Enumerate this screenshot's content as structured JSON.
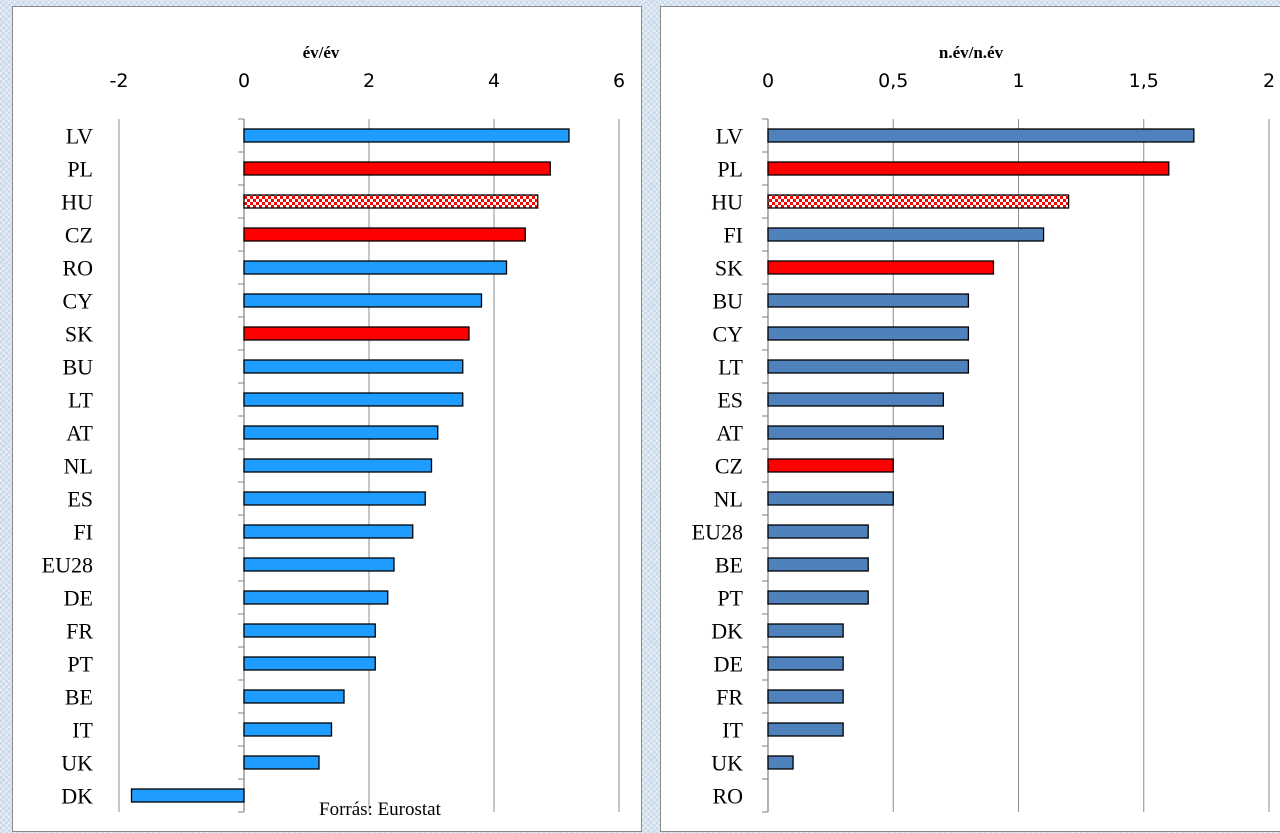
{
  "chart_data": [
    {
      "type": "bar",
      "orientation": "horizontal",
      "title": "év/év",
      "source_note": "Forrás: Eurostat",
      "xlim": [
        -2,
        6
      ],
      "xticks": [
        "-2",
        "0",
        "2",
        "4",
        "6"
      ],
      "grid": true,
      "categories": [
        "LV",
        "PL",
        "HU",
        "CZ",
        "RO",
        "CY",
        "SK",
        "BU",
        "LT",
        "AT",
        "NL",
        "ES",
        "FI",
        "EU28",
        "DE",
        "FR",
        "PT",
        "BE",
        "IT",
        "UK",
        "DK"
      ],
      "values": [
        5.2,
        4.9,
        4.7,
        4.5,
        4.2,
        3.8,
        3.6,
        3.5,
        3.5,
        3.1,
        3.0,
        2.9,
        2.7,
        2.4,
        2.3,
        2.1,
        2.1,
        1.6,
        1.4,
        1.2,
        -1.8
      ],
      "bar_styles": [
        "blue",
        "red",
        "checker",
        "red",
        "blue",
        "blue",
        "red",
        "blue",
        "blue",
        "blue",
        "blue",
        "blue",
        "blue",
        "blue",
        "blue",
        "blue",
        "blue",
        "blue",
        "blue",
        "blue",
        "blue"
      ]
    },
    {
      "type": "bar",
      "orientation": "horizontal",
      "title": "n.év/n.év",
      "xlim": [
        0,
        2
      ],
      "xticks": [
        "0",
        "0,5",
        "1",
        "1,5",
        "2"
      ],
      "grid": true,
      "categories": [
        "LV",
        "PL",
        "HU",
        "FI",
        "SK",
        "BU",
        "CY",
        "LT",
        "ES",
        "AT",
        "CZ",
        "NL",
        "EU28",
        "BE",
        "PT",
        "DK",
        "DE",
        "FR",
        "IT",
        "UK",
        "RO"
      ],
      "values": [
        1.7,
        1.6,
        1.2,
        1.1,
        0.9,
        0.8,
        0.8,
        0.8,
        0.7,
        0.7,
        0.5,
        0.5,
        0.4,
        0.4,
        0.4,
        0.3,
        0.3,
        0.3,
        0.3,
        0.1,
        0.0
      ],
      "bar_styles": [
        "blue",
        "red",
        "checker",
        "blue",
        "red",
        "blue",
        "blue",
        "blue",
        "blue",
        "blue",
        "red",
        "blue",
        "blue",
        "blue",
        "blue",
        "blue",
        "blue",
        "blue",
        "blue",
        "blue",
        "blue"
      ]
    }
  ],
  "colors": {
    "left_blue": "#1e9cff",
    "right_blue": "#4f81bd",
    "highlight_red": "#ff0000",
    "gridline": "#8c8c8c"
  }
}
